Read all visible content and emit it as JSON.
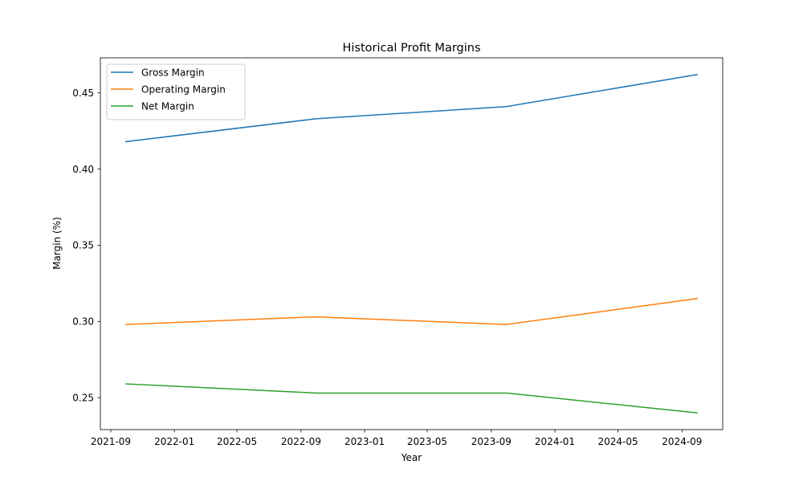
{
  "chart_data": {
    "type": "line",
    "title": "Historical Profit Margins",
    "xlabel": "Year",
    "ylabel": "Margin (%)",
    "x": [
      "2021-09-30",
      "2022-09-30",
      "2023-09-30",
      "2024-09-30"
    ],
    "series": [
      {
        "name": "Gross Margin",
        "color": "#1f77b4",
        "values": [
          0.418,
          0.433,
          0.441,
          0.462
        ]
      },
      {
        "name": "Operating Margin",
        "color": "#ff7f0e",
        "values": [
          0.298,
          0.303,
          0.298,
          0.315
        ]
      },
      {
        "name": "Net Margin",
        "color": "#2ca02c",
        "values": [
          0.259,
          0.253,
          0.253,
          0.24
        ]
      }
    ],
    "xlim": [
      "2021-08-12",
      "2024-11-18"
    ],
    "ylim": [
      0.229,
      0.473
    ],
    "x_ticks": [
      {
        "date": "2021-09-01",
        "label": "2021-09"
      },
      {
        "date": "2022-01-01",
        "label": "2022-01"
      },
      {
        "date": "2022-05-01",
        "label": "2022-05"
      },
      {
        "date": "2022-09-01",
        "label": "2022-09"
      },
      {
        "date": "2023-01-01",
        "label": "2023-01"
      },
      {
        "date": "2023-05-01",
        "label": "2023-05"
      },
      {
        "date": "2023-09-01",
        "label": "2023-09"
      },
      {
        "date": "2024-01-01",
        "label": "2024-01"
      },
      {
        "date": "2024-05-01",
        "label": "2024-05"
      },
      {
        "date": "2024-09-01",
        "label": "2024-09"
      }
    ],
    "y_ticks": [
      {
        "value": 0.25,
        "label": "0.25"
      },
      {
        "value": 0.3,
        "label": "0.30"
      },
      {
        "value": 0.35,
        "label": "0.35"
      },
      {
        "value": 0.4,
        "label": "0.40"
      },
      {
        "value": 0.45,
        "label": "0.45"
      }
    ],
    "legend_position": "upper-left",
    "grid": false
  }
}
